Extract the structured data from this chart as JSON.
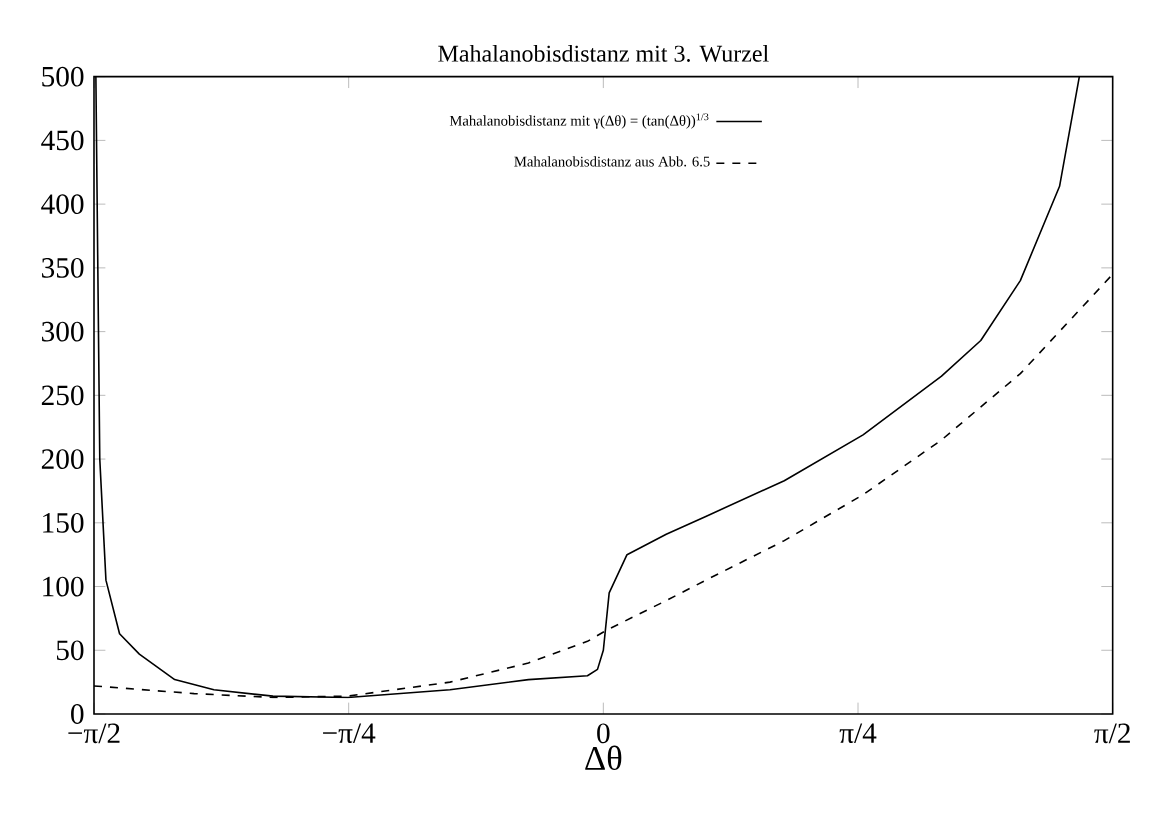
{
  "chart_data": {
    "type": "line",
    "title": "Mahalanobisdistanz mit 3. Wurzel",
    "xlabel": "Δθ",
    "xlim": [
      -1.5708,
      1.5708
    ],
    "ylim": [
      0,
      500
    ],
    "xticks": [
      {
        "value": -1.5708,
        "label": "−π/2"
      },
      {
        "value": -0.7854,
        "label": "−π/4"
      },
      0,
      {
        "value": 0.7854,
        "label": "π/4"
      },
      {
        "value": 1.5708,
        "label": "π/2"
      }
    ],
    "yticks": [
      0,
      50,
      100,
      150,
      200,
      250,
      300,
      350,
      400,
      450,
      500
    ],
    "legend": "top",
    "series": [
      {
        "name": "Mahalanobisdistanz mit γ(Δθ) = (tan(Δθ))$^{1/3}$",
        "color": "#000000",
        "line_style": "solid",
        "x": [
          -1.565,
          -1.553,
          -1.534,
          -1.492,
          -1.431,
          -1.322,
          -1.201,
          -1.019,
          -0.788,
          -0.473,
          -0.231,
          -0.049,
          -0.018,
          0,
          0.018,
          0.073,
          0.194,
          0.316,
          0.558,
          0.801,
          1.043,
          1.164,
          1.286,
          1.407,
          1.468
        ],
        "values": [
          500,
          200,
          105,
          63,
          47,
          27,
          19,
          14,
          13,
          19,
          27,
          30,
          35,
          50,
          95,
          125,
          141,
          155,
          183,
          219,
          265,
          293,
          340,
          414,
          500
        ]
      },
      {
        "name": "Mahalanobisdistanz aus Abb. 6.5",
        "color": "#000000",
        "line_style": "dashed",
        "x": [
          -1.5708,
          -1.262,
          -1.019,
          -0.788,
          -0.473,
          -0.231,
          -0.049,
          0.012,
          0.194,
          0.316,
          0.558,
          0.801,
          1.043,
          1.286,
          1.5708
        ],
        "values": [
          22,
          16,
          13,
          14,
          25,
          40,
          57,
          66,
          89,
          105,
          136,
          172,
          215,
          267,
          345
        ]
      }
    ]
  }
}
